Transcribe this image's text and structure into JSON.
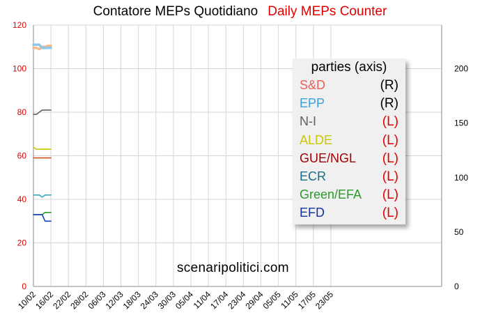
{
  "header": {
    "title": "Contatore MEPs Quotidiano",
    "title_alt": "Daily MEPs Counter"
  },
  "watermark": "scenaripolitici.com",
  "legend": {
    "title": "parties (axis)",
    "items": [
      {
        "name": "S&D",
        "axis": "(R)",
        "color": "#e8605a",
        "axis_color": "#000000"
      },
      {
        "name": "EPP",
        "axis": "(R)",
        "color": "#3aa0d8",
        "axis_color": "#000000"
      },
      {
        "name": "N-I",
        "axis": "(L)",
        "color": "#606060",
        "axis_color": "#e00000"
      },
      {
        "name": "ALDE",
        "axis": "(L)",
        "color": "#c8c800",
        "axis_color": "#e00000"
      },
      {
        "name": "GUE/NGL",
        "axis": "(L)",
        "color": "#a00000",
        "axis_color": "#e00000"
      },
      {
        "name": "ECR",
        "axis": "(L)",
        "color": "#1a6d8c",
        "axis_color": "#e00000"
      },
      {
        "name": "Green/EFA",
        "axis": "(L)",
        "color": "#2a9a2a",
        "axis_color": "#e00000"
      },
      {
        "name": "EFD",
        "axis": "(L)",
        "color": "#1530a0",
        "axis_color": "#e00000"
      }
    ]
  },
  "chart_data": {
    "type": "line",
    "title": "Contatore MEPs Quotidiano",
    "subtitle": "Daily MEPs Counter",
    "x_tick_labels": [
      "10/02",
      "16/02",
      "22/02",
      "28/02",
      "06/03",
      "12/03",
      "18/03",
      "24/03",
      "30/03",
      "05/04",
      "11/04",
      "17/04",
      "23/04",
      "29/04",
      "05/05",
      "11/05",
      "17/05",
      "23/05"
    ],
    "x_days": [
      10,
      11,
      12,
      13,
      14,
      15,
      16
    ],
    "y_left": {
      "lim": [
        0,
        120
      ],
      "ticks": [
        0,
        20,
        40,
        60,
        80,
        100,
        120
      ],
      "color": "#e00000"
    },
    "y_right": {
      "lim": [
        0,
        240
      ],
      "ticks": [
        0,
        50,
        100,
        150,
        200
      ],
      "color": "#000000"
    },
    "grid": true,
    "series": [
      {
        "name": "S&D",
        "axis": "right",
        "color": "#f5b98a",
        "values": [
          219,
          219,
          218,
          220,
          220,
          221,
          221
        ]
      },
      {
        "name": "EPP",
        "axis": "right",
        "color": "#8cc8ec",
        "values": [
          222,
          222,
          222,
          219,
          219,
          219,
          219
        ]
      },
      {
        "name": "N-I",
        "axis": "left",
        "color": "#606060",
        "values": [
          79,
          79,
          80,
          81,
          81,
          81,
          81
        ]
      },
      {
        "name": "ALDE",
        "axis": "left",
        "color": "#c8c800",
        "values": [
          64,
          63,
          63,
          63,
          63,
          63,
          63
        ]
      },
      {
        "name": "GUE/NGL",
        "axis": "left",
        "color": "#d05020",
        "values": [
          59,
          59,
          59,
          59,
          59,
          59,
          59
        ]
      },
      {
        "name": "ECR",
        "axis": "left",
        "color": "#3aa8b8",
        "values": [
          42,
          42,
          42,
          41,
          42,
          42,
          42
        ]
      },
      {
        "name": "Green/EFA",
        "axis": "left",
        "color": "#2a9a2a",
        "values": [
          33,
          33,
          33,
          33,
          34,
          34,
          34
        ]
      },
      {
        "name": "EFD",
        "axis": "left",
        "color": "#1540c0",
        "values": [
          33,
          33,
          33,
          33,
          30,
          30,
          30
        ]
      }
    ]
  }
}
